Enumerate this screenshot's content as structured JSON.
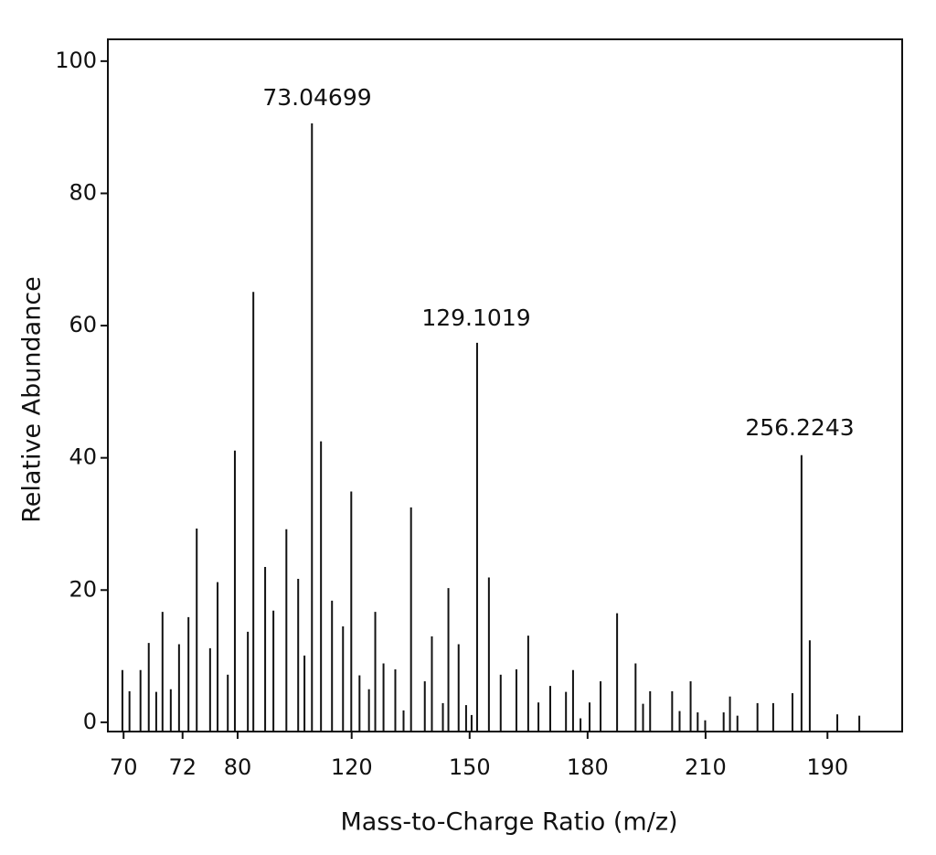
{
  "chart_data": {
    "type": "stem",
    "x_label": "Mass-to-Charge Ratio (m/z)",
    "y_label": "Relative Abundance",
    "annotations": [
      "73.04699",
      "129.1019",
      "256.2243"
    ],
    "color": "#111111",
    "xlim": [
      58,
      260
    ],
    "ylim": [
      -1.4,
      103.3
    ],
    "xticks": [
      {
        "value": 62,
        "label": "70"
      },
      {
        "value": 77,
        "label": "72"
      },
      {
        "value": 91,
        "label": "80"
      },
      120,
      150,
      180,
      210,
      {
        "value": 241,
        "label": "190"
      }
    ],
    "yticks": [
      0,
      20,
      40,
      60,
      80,
      100
    ],
    "x": [
      61.7,
      63.5,
      66.3,
      68.4,
      70.3,
      71.9,
      74.0,
      76.1,
      78.5,
      80.6,
      84.0,
      85.9,
      88.5,
      90.3,
      93.6,
      95.0,
      98.0,
      100.1,
      103.4,
      106.4,
      108.0,
      109.9,
      112.2,
      115.0,
      117.8,
      119.9,
      122.0,
      124.4,
      126.0,
      128.1,
      131.1,
      133.2,
      135.1,
      138.6,
      140.4,
      143.2,
      144.6,
      147.2,
      149.1,
      150.5,
      151.9,
      154.9,
      157.9,
      161.9,
      164.9,
      167.5,
      170.5,
      174.5,
      176.3,
      178.2,
      180.5,
      183.3,
      187.5,
      192.2,
      194.1,
      195.9,
      201.5,
      203.4,
      206.2,
      208.0,
      209.9,
      214.6,
      216.2,
      218.1,
      223.2,
      227.2,
      232.1,
      234.4,
      236.5,
      243.5,
      249.1
    ],
    "values": [
      7.9,
      4.7,
      7.9,
      12.0,
      4.6,
      16.7,
      5.0,
      11.8,
      15.9,
      29.3,
      11.2,
      21.2,
      7.2,
      41.1,
      13.7,
      65.1,
      23.5,
      16.9,
      29.2,
      21.7,
      10.1,
      90.6,
      42.5,
      18.4,
      14.5,
      34.9,
      7.1,
      5.0,
      16.7,
      8.9,
      8.0,
      1.8,
      32.5,
      6.2,
      13.0,
      2.9,
      20.3,
      11.8,
      2.6,
      1.1,
      57.4,
      21.9,
      7.2,
      8.0,
      13.1,
      3.0,
      5.5,
      4.6,
      7.9,
      0.6,
      3.0,
      6.2,
      16.5,
      8.9,
      2.8,
      4.7,
      4.7,
      1.7,
      6.2,
      1.5,
      0.3,
      1.5,
      3.9,
      1.0,
      2.9,
      2.9,
      4.4,
      40.4,
      12.4,
      1.2,
      1.0
    ]
  }
}
